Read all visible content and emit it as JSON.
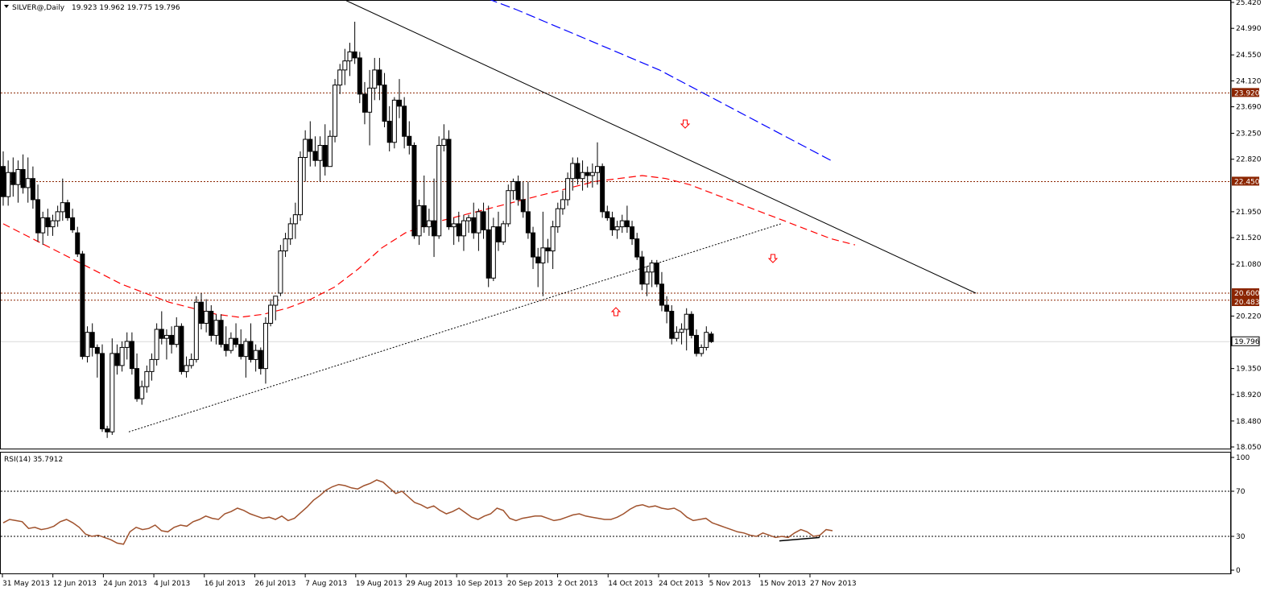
{
  "window": {
    "symbol_header": "SILVER@,Daily",
    "ohlc_header": "19.923 19.962 19.775 19.796"
  },
  "rsi_panel": {
    "header": "RSI(14) 35.7912",
    "levels": [
      30,
      70
    ],
    "ticks": [
      "100",
      "70",
      "30",
      "0"
    ]
  },
  "chart_data": {
    "type": "candlestick",
    "title": "SILVER@,Daily",
    "price_axis": {
      "ticks": [
        25.42,
        24.99,
        24.55,
        24.12,
        23.69,
        23.25,
        22.82,
        21.95,
        21.52,
        21.08,
        20.22,
        19.35,
        18.92,
        18.48,
        18.05
      ],
      "tick_labels": [
        "25.420",
        "24.990",
        "24.550",
        "24.120",
        "23.690",
        "23.250",
        "22.820",
        "21.950",
        "21.520",
        "21.080",
        "20.220",
        "19.350",
        "18.920",
        "18.480",
        "18.050"
      ],
      "ylim": [
        18.05,
        25.42
      ]
    },
    "time_axis": {
      "labels": [
        "31 May 2013",
        "12 Jun 2013",
        "24 Jun 2013",
        "4 Jul 2013",
        "16 Jul 2013",
        "26 Jul 2013",
        "7 Aug 2013",
        "19 Aug 2013",
        "29 Aug 2013",
        "10 Sep 2013",
        "20 Sep 2013",
        "2 Oct 2013",
        "14 Oct 2013",
        "24 Oct 2013",
        "5 Nov 2013",
        "15 Nov 2013",
        "27 Nov 2013"
      ]
    },
    "horizontal_levels": [
      {
        "value": 23.92,
        "label": "23.920",
        "style": "dotted",
        "color": "#8b2500"
      },
      {
        "value": 22.45,
        "label": "22.450",
        "style": "dotted",
        "color": "#8b2500"
      },
      {
        "value": 20.6,
        "label": "20.600",
        "style": "dotted",
        "color": "#8b2500"
      },
      {
        "value": 20.483,
        "label": "20.483",
        "style": "dotted",
        "color": "#8b2500"
      }
    ],
    "current_price": {
      "value": 19.796,
      "label": "19.796"
    },
    "candles": [
      [
        22.7,
        22.95,
        22.05,
        22.2
      ],
      [
        22.2,
        22.8,
        22.05,
        22.6
      ],
      [
        22.6,
        22.85,
        22.2,
        22.4
      ],
      [
        22.4,
        22.8,
        22.1,
        22.65
      ],
      [
        22.65,
        22.9,
        22.25,
        22.35
      ],
      [
        22.35,
        22.85,
        22.1,
        22.5
      ],
      [
        22.5,
        22.7,
        22.0,
        22.15
      ],
      [
        22.15,
        22.4,
        21.45,
        21.6
      ],
      [
        21.6,
        21.95,
        21.4,
        21.85
      ],
      [
        21.85,
        22.0,
        21.55,
        21.7
      ],
      [
        21.7,
        21.9,
        21.55,
        21.8
      ],
      [
        21.8,
        22.05,
        21.7,
        21.95
      ],
      [
        21.95,
        22.5,
        21.8,
        22.1
      ],
      [
        22.1,
        22.15,
        21.8,
        21.85
      ],
      [
        21.85,
        22.0,
        21.6,
        21.65
      ],
      [
        21.6,
        21.7,
        21.2,
        21.25
      ],
      [
        21.25,
        21.3,
        19.5,
        19.55
      ],
      [
        19.55,
        20.05,
        19.45,
        19.95
      ],
      [
        19.95,
        20.1,
        19.55,
        19.7
      ],
      [
        19.7,
        19.75,
        19.2,
        19.6
      ],
      [
        19.6,
        19.75,
        18.3,
        18.35
      ],
      [
        18.35,
        18.4,
        18.2,
        18.3
      ],
      [
        18.3,
        19.85,
        18.25,
        19.6
      ],
      [
        19.6,
        19.75,
        19.25,
        19.4
      ],
      [
        19.4,
        19.8,
        19.3,
        19.7
      ],
      [
        19.7,
        19.95,
        19.5,
        19.8
      ],
      [
        19.8,
        19.95,
        19.25,
        19.35
      ],
      [
        19.35,
        19.6,
        18.8,
        18.85
      ],
      [
        18.85,
        19.15,
        18.75,
        19.05
      ],
      [
        19.05,
        19.4,
        18.95,
        19.3
      ],
      [
        19.3,
        19.6,
        19.15,
        19.5
      ],
      [
        19.5,
        20.1,
        19.4,
        20.0
      ],
      [
        20.0,
        20.3,
        19.75,
        19.85
      ],
      [
        19.85,
        20.0,
        19.5,
        19.9
      ],
      [
        19.9,
        20.05,
        19.6,
        19.75
      ],
      [
        19.75,
        20.2,
        19.7,
        20.05
      ],
      [
        20.05,
        20.1,
        19.25,
        19.3
      ],
      [
        19.3,
        19.55,
        19.2,
        19.4
      ],
      [
        19.4,
        19.6,
        19.35,
        19.5
      ],
      [
        19.5,
        20.55,
        19.45,
        20.45
      ],
      [
        20.45,
        20.6,
        20.0,
        20.1
      ],
      [
        20.1,
        20.5,
        19.95,
        20.3
      ],
      [
        20.3,
        20.4,
        19.8,
        19.9
      ],
      [
        19.9,
        20.25,
        19.75,
        20.15
      ],
      [
        20.15,
        20.25,
        19.7,
        19.75
      ],
      [
        19.75,
        20.05,
        19.55,
        19.65
      ],
      [
        19.65,
        19.95,
        19.6,
        19.85
      ],
      [
        19.85,
        20.1,
        19.7,
        19.75
      ],
      [
        19.75,
        20.0,
        19.5,
        19.55
      ],
      [
        19.55,
        19.85,
        19.2,
        19.8
      ],
      [
        19.8,
        20.1,
        19.45,
        19.5
      ],
      [
        19.5,
        19.75,
        19.3,
        19.65
      ],
      [
        19.65,
        19.7,
        19.25,
        19.35
      ],
      [
        19.35,
        20.2,
        19.1,
        20.1
      ],
      [
        20.1,
        20.5,
        20.05,
        20.4
      ],
      [
        20.4,
        20.55,
        20.15,
        20.55
      ],
      [
        20.6,
        21.4,
        20.55,
        21.3
      ],
      [
        21.3,
        21.6,
        21.2,
        21.5
      ],
      [
        21.5,
        21.85,
        21.4,
        21.75
      ],
      [
        21.75,
        22.1,
        21.5,
        21.9
      ],
      [
        21.9,
        22.95,
        21.8,
        22.85
      ],
      [
        22.85,
        23.3,
        22.45,
        23.15
      ],
      [
        23.15,
        23.45,
        22.7,
        22.95
      ],
      [
        22.95,
        23.2,
        22.7,
        22.8
      ],
      [
        22.8,
        23.2,
        22.45,
        23.05
      ],
      [
        23.05,
        23.4,
        22.55,
        22.7
      ],
      [
        22.7,
        23.3,
        22.7,
        23.2
      ],
      [
        23.2,
        24.15,
        23.1,
        24.05
      ],
      [
        24.05,
        24.4,
        23.9,
        24.3
      ],
      [
        24.3,
        24.65,
        24.05,
        24.45
      ],
      [
        24.45,
        24.75,
        24.2,
        24.6
      ],
      [
        24.6,
        25.1,
        24.4,
        24.5
      ],
      [
        24.5,
        24.6,
        23.75,
        23.9
      ],
      [
        23.9,
        24.1,
        23.4,
        23.6
      ],
      [
        23.6,
        24.3,
        23.05,
        24.0
      ],
      [
        24.0,
        24.5,
        23.8,
        24.3
      ],
      [
        24.3,
        24.5,
        23.8,
        24.05
      ],
      [
        24.05,
        24.25,
        23.35,
        23.45
      ],
      [
        23.45,
        23.7,
        22.95,
        23.1
      ],
      [
        23.1,
        23.85,
        23.0,
        23.8
      ],
      [
        23.8,
        24.15,
        23.5,
        23.7
      ],
      [
        23.7,
        23.85,
        23.0,
        23.2
      ],
      [
        23.2,
        23.45,
        22.9,
        23.05
      ],
      [
        23.05,
        23.1,
        21.5,
        21.55
      ],
      [
        21.55,
        22.15,
        21.4,
        22.05
      ],
      [
        22.05,
        22.55,
        21.6,
        21.7
      ],
      [
        21.7,
        22.0,
        21.55,
        21.8
      ],
      [
        21.8,
        22.5,
        21.2,
        21.55
      ],
      [
        21.55,
        23.2,
        21.5,
        23.05
      ],
      [
        23.05,
        23.4,
        22.95,
        23.15
      ],
      [
        23.15,
        23.3,
        21.65,
        21.7
      ],
      [
        21.7,
        21.85,
        21.4,
        21.75
      ],
      [
        21.75,
        21.95,
        21.45,
        21.55
      ],
      [
        21.55,
        21.9,
        21.3,
        21.8
      ],
      [
        21.8,
        21.9,
        21.6,
        21.85
      ],
      [
        21.85,
        22.1,
        21.5,
        21.6
      ],
      [
        21.6,
        22.0,
        21.3,
        21.95
      ],
      [
        21.95,
        22.1,
        21.5,
        21.65
      ],
      [
        21.65,
        22.05,
        20.7,
        20.85
      ],
      [
        20.85,
        21.85,
        20.8,
        21.7
      ],
      [
        21.7,
        21.95,
        21.3,
        21.45
      ],
      [
        21.45,
        21.8,
        21.4,
        21.75
      ],
      [
        21.75,
        22.4,
        21.7,
        22.3
      ],
      [
        22.3,
        22.5,
        22.15,
        22.45
      ],
      [
        22.45,
        22.55,
        22.05,
        22.15
      ],
      [
        22.15,
        22.45,
        21.85,
        21.95
      ],
      [
        21.95,
        22.45,
        21.5,
        21.6
      ],
      [
        21.6,
        21.7,
        21.0,
        21.2
      ],
      [
        21.2,
        21.35,
        20.7,
        21.1
      ],
      [
        21.1,
        21.95,
        20.55,
        21.35
      ],
      [
        21.35,
        21.5,
        21.1,
        21.3
      ],
      [
        21.3,
        21.8,
        21.0,
        21.7
      ],
      [
        21.7,
        22.1,
        21.6,
        22.0
      ],
      [
        22.0,
        22.3,
        21.9,
        22.15
      ],
      [
        22.15,
        22.6,
        22.05,
        22.5
      ],
      [
        22.5,
        22.85,
        22.3,
        22.75
      ],
      [
        22.75,
        22.85,
        22.4,
        22.5
      ],
      [
        22.5,
        22.8,
        22.3,
        22.6
      ],
      [
        22.6,
        22.7,
        22.35,
        22.55
      ],
      [
        22.55,
        22.75,
        22.35,
        22.6
      ],
      [
        22.6,
        23.1,
        22.4,
        22.7
      ],
      [
        22.7,
        22.75,
        21.85,
        21.95
      ],
      [
        21.95,
        22.05,
        21.8,
        21.85
      ],
      [
        21.85,
        21.95,
        21.55,
        21.65
      ],
      [
        21.65,
        21.8,
        21.5,
        21.7
      ],
      [
        21.7,
        21.9,
        21.6,
        21.8
      ],
      [
        21.8,
        22.05,
        21.6,
        21.7
      ],
      [
        21.7,
        21.8,
        21.4,
        21.5
      ],
      [
        21.5,
        21.6,
        21.15,
        21.2
      ],
      [
        21.2,
        21.3,
        20.65,
        20.75
      ],
      [
        20.75,
        21.05,
        20.55,
        20.95
      ],
      [
        20.95,
        21.15,
        20.7,
        21.1
      ],
      [
        21.1,
        21.15,
        20.7,
        20.75
      ],
      [
        20.75,
        20.95,
        20.3,
        20.4
      ],
      [
        20.4,
        20.55,
        20.1,
        20.3
      ],
      [
        20.3,
        20.4,
        19.75,
        19.85
      ],
      [
        19.85,
        20.05,
        19.8,
        19.95
      ],
      [
        19.95,
        20.1,
        19.75,
        20.0
      ],
      [
        20.0,
        20.35,
        19.65,
        20.25
      ],
      [
        20.25,
        20.3,
        19.85,
        19.9
      ],
      [
        19.9,
        20.0,
        19.55,
        19.6
      ],
      [
        19.6,
        19.75,
        19.55,
        19.7
      ],
      [
        19.7,
        20.05,
        19.65,
        19.95
      ],
      [
        19.923,
        19.962,
        19.775,
        19.796
      ]
    ],
    "moving_averages": [
      {
        "name": "",
        "color": "#ff0000",
        "style": "dashed",
        "values": [
          21.75,
          21.55,
          21.35,
          21.15,
          20.95,
          20.75,
          20.6,
          20.45,
          20.35,
          20.25,
          20.2,
          20.25,
          20.35,
          20.5,
          20.7,
          21.0,
          21.35,
          21.6,
          21.75,
          21.85,
          21.95,
          22.05,
          22.15,
          22.25,
          22.35,
          22.45,
          22.5,
          22.55,
          22.5,
          22.4,
          22.25,
          22.1,
          21.95,
          21.8,
          21.65,
          21.5,
          21.4
        ]
      },
      {
        "name": "",
        "color": "#0000ff",
        "style": "dashed",
        "values": [
          25.48,
          25.3,
          25.1,
          24.9,
          24.7,
          24.5,
          24.3,
          24.05,
          23.8,
          23.55,
          23.3,
          23.05,
          22.8
        ]
      }
    ],
    "trendlines": [
      {
        "from": [
          0,
          25.45
        ],
        "to": [
          0,
          20.6
        ],
        "style": "solid",
        "color": "#000000"
      },
      {
        "from": [
          0,
          18.3
        ],
        "to": [
          0,
          21.75
        ],
        "style": "dotted",
        "color": "#000000"
      }
    ],
    "arrows": [
      {
        "direction": "down",
        "color": "#ff0000"
      },
      {
        "direction": "down",
        "color": "#ff0000"
      },
      {
        "direction": "up",
        "color": "#ff0000"
      }
    ],
    "rsi": {
      "name": "RSI(14)",
      "color": "#a0522d",
      "values": [
        42,
        45,
        44,
        43,
        37,
        38,
        36,
        37,
        39,
        43,
        45,
        42,
        38,
        32,
        30,
        31,
        29,
        27,
        24,
        23,
        34,
        38,
        36,
        37,
        40,
        35,
        34,
        38,
        40,
        39,
        43,
        45,
        48,
        46,
        45,
        50,
        52,
        55,
        53,
        50,
        48,
        46,
        47,
        45,
        48,
        44,
        46,
        51,
        56,
        62,
        66,
        71,
        74,
        76,
        75,
        73,
        72,
        75,
        77,
        80,
        78,
        73,
        68,
        70,
        65,
        60,
        58,
        55,
        57,
        53,
        50,
        52,
        55,
        51,
        47,
        45,
        48,
        50,
        55,
        53,
        46,
        44,
        46,
        47,
        48,
        48,
        46,
        44,
        45,
        47,
        49,
        50,
        48,
        47,
        46,
        45,
        45,
        47,
        50,
        54,
        57,
        58,
        56,
        57,
        55,
        54,
        55,
        52,
        47,
        44,
        45,
        46,
        42,
        40,
        38,
        36,
        34,
        33,
        31,
        30,
        33,
        31,
        29,
        30,
        29,
        33,
        36,
        34,
        30,
        31,
        36,
        35
      ]
    }
  }
}
